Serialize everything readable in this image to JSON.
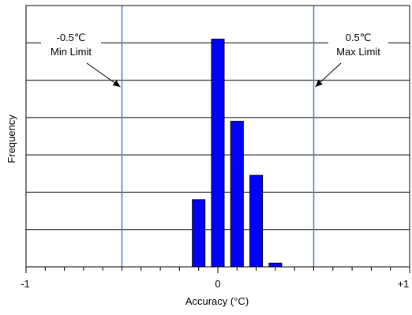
{
  "chart_data": {
    "type": "bar",
    "title": "",
    "xlabel": "Accuracy (°C)",
    "ylabel": "Frequency",
    "xlim": [
      -1,
      1
    ],
    "ylim": [
      0,
      7
    ],
    "x_tick_labels": [
      {
        "value": -1,
        "label": "-1"
      },
      {
        "value": 0,
        "label": "0"
      },
      {
        "value": 1,
        "label": "+1"
      }
    ],
    "bins": [
      {
        "x": -0.1,
        "value": 1.8
      },
      {
        "x": 0.0,
        "value": 6.1
      },
      {
        "x": 0.1,
        "value": 3.9
      },
      {
        "x": 0.2,
        "value": 2.45
      },
      {
        "x": 0.3,
        "value": 0.1
      }
    ],
    "bar_color": "#0000ff",
    "limit_line_color": "#4f81bd",
    "limits": [
      {
        "value": -0.5,
        "label_line1": "-0.5℃",
        "label_line2": "Min Limit",
        "side": "left"
      },
      {
        "value": 0.5,
        "label_line1": "0.5℃",
        "label_line2": "Max Limit",
        "side": "right"
      }
    ],
    "grid": true,
    "legend": "none"
  }
}
